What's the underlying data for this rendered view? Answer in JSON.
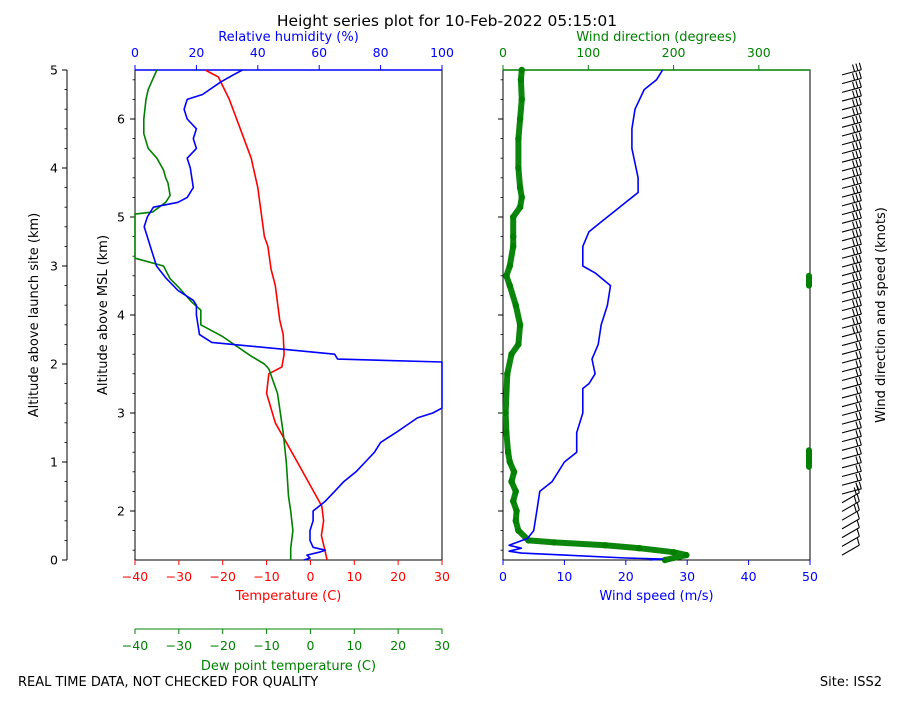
{
  "title": "Height series plot for 10-Feb-2022 05:15:01",
  "footer_left": "REAL TIME DATA, NOT CHECKED FOR QUALITY",
  "footer_right": "Site: ISS2",
  "colors": {
    "red": "#ff0000",
    "green": "#008000",
    "blue": "#0000ff",
    "black": "#000000"
  },
  "chart_data": [
    {
      "type": "line",
      "panel": "thermodynamic",
      "axes": {
        "temperature": {
          "label": "Temperature (C)",
          "range": [
            -40,
            30
          ],
          "ticks": [
            -40,
            -30,
            -20,
            -10,
            0,
            10,
            20,
            30
          ],
          "tick_labels": [
            "−40",
            "−30",
            "−20",
            "−10",
            "0",
            "10",
            "20",
            "30"
          ]
        },
        "dewpoint": {
          "label": "Dew point temperature (C)",
          "range": [
            -40,
            30
          ],
          "ticks": [
            -40,
            -30,
            -20,
            -10,
            0,
            10,
            20,
            30
          ],
          "tick_labels": [
            "−40",
            "−30",
            "−20",
            "−10",
            "0",
            "10",
            "20",
            "30"
          ]
        },
        "humidity": {
          "label": "Relative humidity (%)",
          "range": [
            0,
            100
          ],
          "ticks": [
            0,
            20,
            40,
            60,
            80,
            100
          ],
          "tick_labels": [
            "0",
            "20",
            "40",
            "60",
            "80",
            "100"
          ]
        },
        "alt_site": {
          "label": "Altitude above launch site (km)",
          "range": [
            0,
            5
          ],
          "ticks": [
            0,
            1,
            2,
            3,
            4,
            5
          ],
          "tick_labels": [
            "0",
            "1",
            "2",
            "3",
            "4",
            "5"
          ]
        },
        "alt_msl": {
          "label": "Altitude above MSL (km)",
          "range": [
            1.5,
            6.5
          ],
          "ticks": [
            2,
            3,
            4,
            5,
            6
          ],
          "tick_labels": [
            "2",
            "3",
            "4",
            "5",
            "6"
          ]
        }
      },
      "series": [
        {
          "name": "Temperature",
          "color": "red",
          "points": [
            [
              3.8,
              0
            ],
            [
              3.3,
              0.1
            ],
            [
              2.5,
              0.25
            ],
            [
              3,
              0.4
            ],
            [
              2.6,
              0.55
            ],
            [
              -3,
              1
            ],
            [
              -8,
              1.4
            ],
            [
              -10,
              1.7
            ],
            [
              -9.5,
              1.9
            ],
            [
              -6.5,
              1.97
            ],
            [
              -6,
              2.1
            ],
            [
              -6.2,
              2.3
            ],
            [
              -7,
              2.45
            ],
            [
              -8,
              2.8
            ],
            [
              -9,
              2.97
            ],
            [
              -9.7,
              3.2
            ],
            [
              -10.5,
              3.3
            ],
            [
              -12,
              3.8
            ],
            [
              -13.5,
              4.1
            ],
            [
              -16,
              4.4
            ],
            [
              -18.5,
              4.7
            ],
            [
              -21,
              4.93
            ],
            [
              -24,
              5.0
            ]
          ]
        },
        {
          "name": "Dew point",
          "color": "green",
          "points": [
            [
              -4.5,
              0
            ],
            [
              -4.5,
              0.12
            ],
            [
              -4,
              0.3
            ],
            [
              -4.5,
              0.5
            ],
            [
              -5,
              0.65
            ],
            [
              -5.5,
              1
            ],
            [
              -6.2,
              1.3
            ],
            [
              -7.5,
              1.7
            ],
            [
              -9.5,
              1.95
            ],
            [
              -10.5,
              2.0
            ],
            [
              -13.5,
              2.08
            ],
            [
              -20,
              2.28
            ],
            [
              -25,
              2.4
            ],
            [
              -25,
              2.55
            ],
            [
              -27,
              2.63
            ],
            [
              -30,
              2.78
            ],
            [
              -32,
              2.87
            ],
            [
              -33.5,
              3.0
            ],
            [
              -40,
              3.08
            ],
            [
              -40,
              3.3
            ],
            [
              -40,
              3.5
            ],
            [
              -40,
              3.53
            ],
            [
              -36,
              3.55
            ],
            [
              -34.5,
              3.6
            ],
            [
              -33,
              3.65
            ],
            [
              -32,
              3.72
            ],
            [
              -32.5,
              3.85
            ],
            [
              -33,
              3.9
            ],
            [
              -33.5,
              3.98
            ],
            [
              -35,
              4.1
            ],
            [
              -37,
              4.2
            ],
            [
              -38,
              4.35
            ],
            [
              -38,
              4.5
            ],
            [
              -37.5,
              4.7
            ],
            [
              -37,
              4.8
            ],
            [
              -36,
              4.9
            ],
            [
              -35,
              5.0
            ]
          ]
        },
        {
          "name": "Relative humidity",
          "color": "blue",
          "points": [
            [
              55,
              0
            ],
            [
              57,
              0.02
            ],
            [
              56,
              0.05
            ],
            [
              60,
              0.08
            ],
            [
              62,
              0.1
            ],
            [
              58,
              0.13
            ],
            [
              57,
              0.2
            ],
            [
              57,
              0.3
            ],
            [
              58,
              0.4
            ],
            [
              58,
              0.5
            ],
            [
              60,
              0.55
            ],
            [
              62,
              0.6
            ],
            [
              65,
              0.7
            ],
            [
              68,
              0.8
            ],
            [
              72,
              0.9
            ],
            [
              75,
              1.0
            ],
            [
              78,
              1.1
            ],
            [
              80,
              1.2
            ],
            [
              85,
              1.3
            ],
            [
              92,
              1.45
            ],
            [
              97,
              1.5
            ],
            [
              100,
              1.55
            ],
            [
              100,
              2.0
            ],
            [
              100,
              2.02
            ],
            [
              66,
              2.05
            ],
            [
              65,
              2.1
            ],
            [
              25,
              2.22
            ],
            [
              21,
              2.3
            ],
            [
              20,
              2.5
            ],
            [
              20,
              2.6
            ],
            [
              19,
              2.65
            ],
            [
              14,
              2.75
            ],
            [
              10,
              2.88
            ],
            [
              7,
              3.0
            ],
            [
              5,
              3.2
            ],
            [
              3,
              3.4
            ],
            [
              4,
              3.5
            ],
            [
              6,
              3.6
            ],
            [
              14,
              3.65
            ],
            [
              17,
              3.7
            ],
            [
              19,
              3.8
            ],
            [
              18,
              4.0
            ],
            [
              17,
              4.1
            ],
            [
              20,
              4.2
            ],
            [
              19,
              4.3
            ],
            [
              20,
              4.4
            ],
            [
              17,
              4.5
            ],
            [
              16,
              4.6
            ],
            [
              17,
              4.7
            ],
            [
              22,
              4.75
            ],
            [
              28,
              4.88
            ],
            [
              32,
              4.95
            ],
            [
              35,
              5.0
            ]
          ]
        }
      ]
    },
    {
      "type": "line",
      "panel": "wind",
      "axes": {
        "speed": {
          "label": "Wind speed (m/s)",
          "range": [
            0,
            50
          ],
          "ticks": [
            0,
            10,
            20,
            30,
            40,
            50
          ],
          "tick_labels": [
            "0",
            "10",
            "20",
            "30",
            "40",
            "50"
          ]
        },
        "direction": {
          "label": "Wind direction (degrees)",
          "range": [
            0,
            360
          ],
          "ticks": [
            0,
            100,
            200,
            300
          ],
          "tick_labels": [
            "0",
            "100",
            "200",
            "300"
          ]
        },
        "barbs": {
          "label": "Wind direction and speed (knots)"
        }
      },
      "series": [
        {
          "name": "Wind speed",
          "color": "blue",
          "points": [
            [
              24,
              0
            ],
            [
              26,
              0.01
            ],
            [
              20,
              0.02
            ],
            [
              10,
              0.05
            ],
            [
              3,
              0.07
            ],
            [
              1,
              0.09
            ],
            [
              3,
              0.12
            ],
            [
              1,
              0.15
            ],
            [
              4,
              0.22
            ],
            [
              5,
              0.3
            ],
            [
              5.5,
              0.5
            ],
            [
              6,
              0.7
            ],
            [
              8,
              0.8
            ],
            [
              9,
              0.9
            ],
            [
              10,
              1.0
            ],
            [
              12,
              1.1
            ],
            [
              12,
              1.3
            ],
            [
              13,
              1.5
            ],
            [
              13,
              1.75
            ],
            [
              14,
              1.8
            ],
            [
              15,
              1.9
            ],
            [
              14.5,
              2.05
            ],
            [
              15.5,
              2.2
            ],
            [
              16,
              2.4
            ],
            [
              17,
              2.6
            ],
            [
              17.5,
              2.8
            ],
            [
              15,
              2.93
            ],
            [
              13,
              3.0
            ],
            [
              13,
              3.2
            ],
            [
              14,
              3.35
            ],
            [
              16,
              3.45
            ],
            [
              18,
              3.55
            ],
            [
              20,
              3.65
            ],
            [
              22,
              3.75
            ],
            [
              22,
              3.9
            ],
            [
              21,
              4.2
            ],
            [
              21,
              4.4
            ],
            [
              21.5,
              4.6
            ],
            [
              23,
              4.8
            ],
            [
              25,
              4.9
            ],
            [
              26,
              5.0
            ]
          ]
        },
        {
          "name": "Wind direction",
          "color": "green",
          "points": [
            [
              190,
              0
            ],
            [
              215,
              0.05
            ],
            [
              200,
              0.08
            ],
            [
              160,
              0.12
            ],
            [
              120,
              0.15
            ],
            [
              60,
              0.18
            ],
            [
              30,
              0.2
            ],
            [
              18,
              0.3
            ],
            [
              15,
              0.4
            ],
            [
              16,
              0.5
            ],
            [
              12,
              0.6
            ],
            [
              15,
              0.7
            ],
            [
              10,
              0.8
            ],
            [
              13,
              0.9
            ],
            [
              8,
              1.0
            ],
            [
              6,
              1.1
            ],
            [
              4,
              1.3
            ],
            [
              3,
              1.5
            ],
            [
              5,
              1.9
            ],
            [
              10,
              2.1
            ],
            [
              18,
              2.2
            ],
            [
              20,
              2.4
            ],
            [
              15,
              2.6
            ],
            [
              8,
              2.8
            ],
            [
              4,
              2.9
            ],
            [
              8,
              3.0
            ],
            [
              12,
              3.2
            ],
            [
              12,
              3.3
            ],
            [
              12,
              3.5
            ],
            [
              20,
              3.6
            ],
            [
              22,
              3.7
            ],
            [
              20,
              3.8
            ],
            [
              18,
              4.0
            ],
            [
              18,
              4.3
            ],
            [
              20,
              4.5
            ],
            [
              22,
              4.7
            ],
            [
              21,
              4.9
            ],
            [
              22,
              5.0
            ]
          ]
        }
      ]
    }
  ]
}
